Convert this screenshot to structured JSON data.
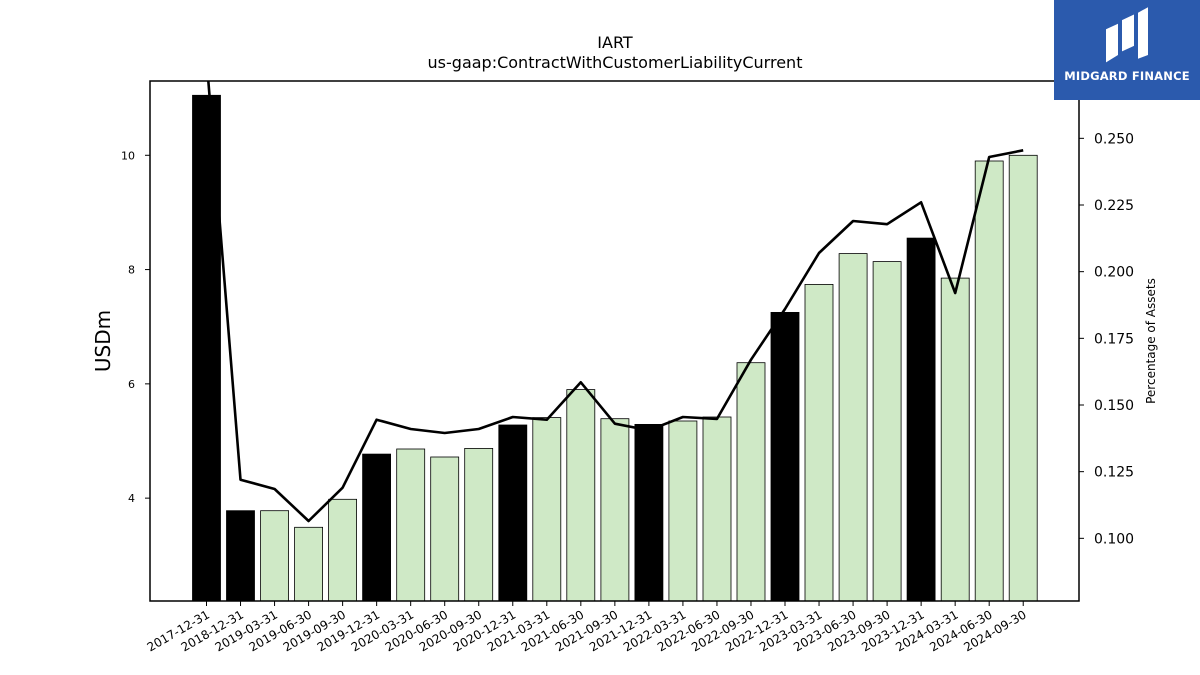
{
  "logo": {
    "text": "MIDGARD FINANCE"
  },
  "chart_data": {
    "type": "bar",
    "title": "IART",
    "subtitle": "us-gaap:ContractWithCustomerLiabilityCurrent",
    "xlabel": "",
    "ylabel": "USDm",
    "y2label": "Percentage of Assets",
    "ylim": [
      2.2,
      11.3
    ],
    "y2lim": [
      0.0765,
      0.2715
    ],
    "yticks": [
      4,
      6,
      8,
      10
    ],
    "y2ticks": [
      "0.100",
      "0.125",
      "0.150",
      "0.175",
      "0.200",
      "0.225",
      "0.250"
    ],
    "categories": [
      "2017-12-31",
      "2018-12-31",
      "2019-03-31",
      "2019-06-30",
      "2019-09-30",
      "2019-12-31",
      "2020-03-31",
      "2020-06-30",
      "2020-09-30",
      "2020-12-31",
      "2021-03-31",
      "2021-06-30",
      "2021-09-30",
      "2021-12-31",
      "2022-03-31",
      "2022-06-30",
      "2022-09-30",
      "2022-12-31",
      "2023-03-31",
      "2023-06-30",
      "2023-09-30",
      "2023-12-31",
      "2024-03-31",
      "2024-06-30",
      "2024-09-30"
    ],
    "series": [
      {
        "type": "bar",
        "values": [
          11.05,
          3.78,
          3.78,
          3.49,
          3.98,
          4.77,
          4.86,
          4.72,
          4.87,
          5.28,
          5.41,
          5.9,
          5.39,
          5.29,
          5.35,
          5.42,
          6.37,
          7.25,
          7.74,
          8.28,
          8.14,
          8.55,
          7.85,
          9.9,
          10.0
        ],
        "annual_color": "#000000",
        "quarter_color": "#cfe9c6"
      },
      {
        "type": "line",
        "axis": "right",
        "values": [
          0.28,
          0.122,
          0.1185,
          0.1065,
          0.119,
          0.1445,
          0.141,
          0.1395,
          0.141,
          0.1455,
          0.1445,
          0.1585,
          0.143,
          0.1405,
          0.1455,
          0.1448,
          0.167,
          0.186,
          0.207,
          0.219,
          0.2178,
          0.226,
          0.192,
          0.243,
          0.2455
        ],
        "color": "#000000"
      }
    ],
    "annual": [
      true,
      true,
      false,
      false,
      false,
      true,
      false,
      false,
      false,
      true,
      false,
      false,
      false,
      true,
      false,
      false,
      false,
      true,
      false,
      false,
      false,
      true,
      false,
      false,
      false
    ],
    "grid": false,
    "legend": "none"
  }
}
